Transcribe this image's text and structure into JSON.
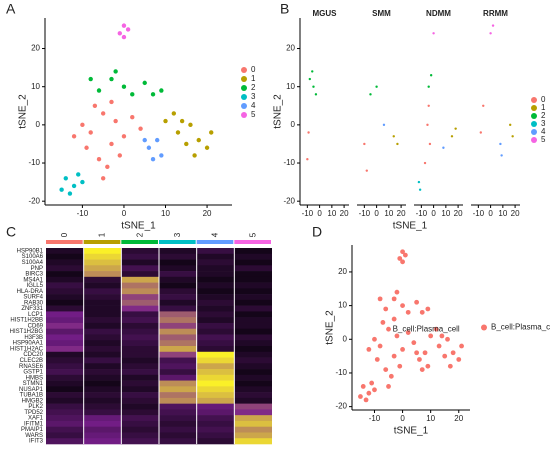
{
  "chart_data": [
    {
      "type": "scatter",
      "panel_label": "A",
      "x_label": "tSNE_1",
      "y_label": "tSNE_2",
      "xlim": [
        -19,
        26
      ],
      "ylim": [
        -21,
        28
      ],
      "xticks": [
        -10,
        0,
        10,
        20
      ],
      "yticks": [
        -20,
        -10,
        0,
        10,
        20
      ],
      "legend": "right",
      "series": [
        {
          "name": "0",
          "color": "#F8766D",
          "x": [
            -8,
            -5,
            -3,
            -10,
            -6,
            -2,
            -9,
            0,
            -4,
            -7,
            2,
            -12,
            -1,
            -5,
            4,
            -3
          ],
          "values": [
            -2,
            3,
            -5,
            0,
            -9,
            1,
            -6,
            -3,
            -11,
            5,
            2,
            -3,
            -8,
            -14,
            -1,
            6
          ]
        },
        {
          "name": "1",
          "color": "#B79F00",
          "x": [
            10,
            13,
            16,
            18,
            20,
            15,
            12,
            21,
            17,
            14
          ],
          "values": [
            1,
            -2,
            0,
            -4,
            -6,
            -5,
            3,
            -2,
            -8,
            1
          ]
        },
        {
          "name": "2",
          "color": "#00BA38",
          "x": [
            -6,
            -3,
            0,
            -8,
            2,
            5,
            -2,
            7,
            9
          ],
          "values": [
            9,
            12,
            10,
            12,
            8,
            11,
            14,
            8,
            9
          ]
        },
        {
          "name": "3",
          "color": "#00BFC4",
          "x": [
            -14,
            -12,
            -11,
            -15,
            -13,
            -10
          ],
          "values": [
            -14,
            -16,
            -13,
            -17,
            -18,
            -15
          ]
        },
        {
          "name": "4",
          "color": "#619CFF",
          "x": [
            6,
            8,
            9,
            7,
            5
          ],
          "values": [
            -6,
            -4,
            -8,
            -9,
            -4
          ]
        },
        {
          "name": "5",
          "color": "#F564E3",
          "x": [
            -1,
            0,
            1,
            0
          ],
          "values": [
            24,
            26,
            25,
            23
          ]
        }
      ]
    },
    {
      "type": "facet-scatter",
      "panel_label": "B",
      "x_label": "tSNE_1",
      "y_label": "tSNE_2",
      "xlim": [
        -16,
        24
      ],
      "ylim": [
        -21,
        28
      ],
      "xticks": [
        -10,
        0,
        10,
        20
      ],
      "yticks": [
        -20,
        -10,
        0,
        10,
        20
      ],
      "legend": "right",
      "legend_entries": [
        {
          "name": "0",
          "color": "#F8766D"
        },
        {
          "name": "1",
          "color": "#B79F00"
        },
        {
          "name": "2",
          "color": "#00BA38"
        },
        {
          "name": "3",
          "color": "#00BFC4"
        },
        {
          "name": "4",
          "color": "#619CFF"
        },
        {
          "name": "5",
          "color": "#F564E3"
        }
      ],
      "facets": [
        {
          "title": "MGUS",
          "series": [
            {
              "color": "#F8766D",
              "x": [
                -9,
                -10
              ],
              "values": [
                -2,
                -9
              ]
            },
            {
              "color": "#00BA38",
              "x": [
                -8,
                -5,
                -3,
                -6
              ],
              "values": [
                12,
                10,
                8,
                14
              ]
            }
          ]
        },
        {
          "title": "SMM",
          "series": [
            {
              "color": "#F8766D",
              "x": [
                -10,
                -8
              ],
              "values": [
                -5,
                -12
              ]
            },
            {
              "color": "#B79F00",
              "x": [
                14,
                17
              ],
              "values": [
                -3,
                -5
              ]
            },
            {
              "color": "#00BA38",
              "x": [
                -5,
                0
              ],
              "values": [
                8,
                10
              ]
            },
            {
              "color": "#619CFF",
              "x": [
                6
              ],
              "values": [
                0
              ]
            }
          ]
        },
        {
          "title": "NDMM",
          "series": [
            {
              "color": "#F8766D",
              "x": [
                -5,
                -3,
                -7,
                -4
              ],
              "values": [
                0,
                -5,
                -10,
                5
              ]
            },
            {
              "color": "#B79F00",
              "x": [
                15,
                18
              ],
              "values": [
                -3,
                -1
              ]
            },
            {
              "color": "#00BA38",
              "x": [
                -4,
                -2
              ],
              "values": [
                10,
                13
              ]
            },
            {
              "color": "#00BFC4",
              "x": [
                -12,
                -11
              ],
              "values": [
                -15,
                -17
              ]
            },
            {
              "color": "#619CFF",
              "x": [
                8
              ],
              "values": [
                -6
              ]
            },
            {
              "color": "#F564E3",
              "x": [
                0
              ],
              "values": [
                24
              ]
            }
          ]
        },
        {
          "title": "RRMM",
          "series": [
            {
              "color": "#F8766D",
              "x": [
                -8,
                -6
              ],
              "values": [
                -2,
                5
              ]
            },
            {
              "color": "#B79F00",
              "x": [
                16,
                18
              ],
              "values": [
                0,
                -3
              ]
            },
            {
              "color": "#619CFF",
              "x": [
                8,
                9
              ],
              "values": [
                -5,
                -8
              ]
            },
            {
              "color": "#F564E3",
              "x": [
                0,
                2
              ],
              "values": [
                24,
                26
              ]
            }
          ]
        }
      ]
    },
    {
      "type": "heatmap",
      "panel_label": "C",
      "groups": [
        "0",
        "1",
        "2",
        "3",
        "4",
        "5"
      ],
      "group_colors": [
        "#F8766D",
        "#B79F00",
        "#00BA38",
        "#00BFC4",
        "#619CFF",
        "#F564E3"
      ],
      "genes": [
        "HSP90B1",
        "S100A6",
        "S100A4",
        "PNP",
        "BIRC3",
        "MS4A1",
        "IGLL5",
        "HLA-DRA",
        "SURF4",
        "RAB30",
        "ZNF331",
        "LCP1",
        "HIST1H2BB",
        "CD69",
        "HIST1H2BG",
        "H3F3B",
        "HSP90AA1",
        "HIST1H2AC",
        "CDC20",
        "CLEC2B",
        "RNASE6",
        "GSTP1",
        "HMBS",
        "STMN1",
        "NUSAP1",
        "TUBA1B",
        "HMGB2",
        "PLK2",
        "TPD52",
        "XAF1",
        "IFITM1",
        "PMAIP1",
        "WARS",
        "IFIT3"
      ],
      "values": [
        [
          0.3,
          1.9,
          0.4,
          0.3,
          0.5,
          0.2
        ],
        [
          0.2,
          1.8,
          0.5,
          0.4,
          0.3,
          0.3
        ],
        [
          0.3,
          1.7,
          0.3,
          0.2,
          0.4,
          0.2
        ],
        [
          0.4,
          1.6,
          0.6,
          0.3,
          0.3,
          0.4
        ],
        [
          0.2,
          1.5,
          0.4,
          0.5,
          0.3,
          0.2
        ],
        [
          0.3,
          0.4,
          1.6,
          0.3,
          0.2,
          0.2
        ],
        [
          0.5,
          0.3,
          1.4,
          0.2,
          0.3,
          0.3
        ],
        [
          0.4,
          0.5,
          1.5,
          0.4,
          0.2,
          0.2
        ],
        [
          0.3,
          0.4,
          1.2,
          0.5,
          0.3,
          0.3
        ],
        [
          0.2,
          0.3,
          1.3,
          0.3,
          0.4,
          0.2
        ],
        [
          0.4,
          0.3,
          1.1,
          0.5,
          0.3,
          0.4
        ],
        [
          1.0,
          0.3,
          0.5,
          1.3,
          0.4,
          0.2
        ],
        [
          0.9,
          0.4,
          0.6,
          1.4,
          0.3,
          0.3
        ],
        [
          1.1,
          0.3,
          0.4,
          1.2,
          0.5,
          0.3
        ],
        [
          0.8,
          0.5,
          0.5,
          1.5,
          0.4,
          0.2
        ],
        [
          1.0,
          0.4,
          0.6,
          1.3,
          0.6,
          0.4
        ],
        [
          0.9,
          0.3,
          0.5,
          1.4,
          0.5,
          0.3
        ],
        [
          1.1,
          0.4,
          0.4,
          1.6,
          0.4,
          0.2
        ],
        [
          0.3,
          0.3,
          0.4,
          1.2,
          1.9,
          0.3
        ],
        [
          0.4,
          0.5,
          0.3,
          0.6,
          1.8,
          0.4
        ],
        [
          0.5,
          0.3,
          0.4,
          0.7,
          1.6,
          0.3
        ],
        [
          0.6,
          0.4,
          0.5,
          0.5,
          1.7,
          0.2
        ],
        [
          0.4,
          0.3,
          0.3,
          0.8,
          1.8,
          0.3
        ],
        [
          0.3,
          0.2,
          0.4,
          1.5,
          1.9,
          0.2
        ],
        [
          0.2,
          0.3,
          0.3,
          1.6,
          1.8,
          0.3
        ],
        [
          0.4,
          0.4,
          0.5,
          1.4,
          1.7,
          0.4
        ],
        [
          0.3,
          0.3,
          0.4,
          1.5,
          1.6,
          0.3
        ],
        [
          0.5,
          0.4,
          0.3,
          0.7,
          0.9,
          1.2
        ],
        [
          0.6,
          0.5,
          0.4,
          0.6,
          0.8,
          1.1
        ],
        [
          0.7,
          0.9,
          0.6,
          0.5,
          0.6,
          1.6
        ],
        [
          0.8,
          1.0,
          0.5,
          0.4,
          0.5,
          1.7
        ],
        [
          0.6,
          0.8,
          0.4,
          0.5,
          0.6,
          1.5
        ],
        [
          0.5,
          0.9,
          0.5,
          0.4,
          0.5,
          1.6
        ],
        [
          0.7,
          1.0,
          0.6,
          0.5,
          0.4,
          1.8
        ]
      ]
    },
    {
      "type": "scatter",
      "panel_label": "D",
      "x_label": "tSNE_1",
      "y_label": "tSNE_2",
      "annotation": "B_cell:Plasma_cell",
      "xlim": [
        -18,
        24
      ],
      "ylim": [
        -21,
        28
      ],
      "xticks": [
        -10,
        0,
        10,
        20
      ],
      "yticks": [
        -20,
        -10,
        0,
        10,
        20
      ],
      "legend": "right",
      "series": [
        {
          "name": "B_cell:Plasma_cell",
          "color": "#F8766D",
          "x": [
            -8,
            -5,
            -3,
            -10,
            -6,
            -2,
            -9,
            0,
            -4,
            -7,
            2,
            -12,
            -1,
            -5,
            4,
            -3,
            10,
            13,
            16,
            18,
            20,
            15,
            12,
            21,
            17,
            14,
            -6,
            -3,
            0,
            -8,
            2,
            5,
            -2,
            7,
            9,
            -14,
            -12,
            -11,
            -15,
            -13,
            -10,
            6,
            8,
            9,
            7,
            5,
            -1,
            0,
            1,
            0
          ],
          "values": [
            -2,
            3,
            -5,
            0,
            -9,
            1,
            -6,
            -3,
            -11,
            5,
            2,
            -3,
            -8,
            -14,
            -1,
            6,
            1,
            -2,
            0,
            -4,
            -6,
            -5,
            3,
            -2,
            -8,
            1,
            9,
            12,
            10,
            12,
            8,
            11,
            14,
            8,
            9,
            -14,
            -16,
            -13,
            -17,
            -18,
            -15,
            -6,
            -4,
            -8,
            -9,
            -4,
            24,
            26,
            25,
            23
          ]
        }
      ]
    }
  ]
}
